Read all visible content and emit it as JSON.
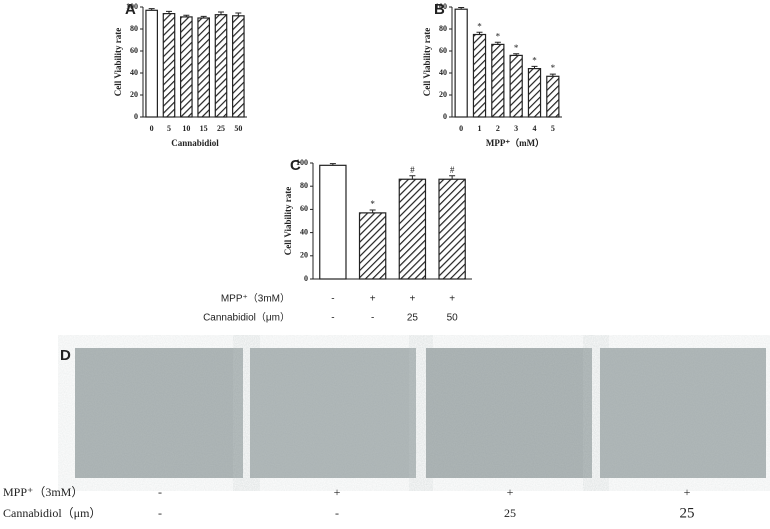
{
  "chart_data": [
    {
      "type": "bar",
      "panel": "A",
      "ylabel": "Cell Viability rate",
      "xlabel": "Cannabidiol",
      "categories": [
        "0",
        "5",
        "10",
        "15",
        "25",
        "50"
      ],
      "values": [
        97,
        94,
        91,
        90,
        93,
        92
      ],
      "errors": [
        1.5,
        2,
        1.5,
        1.5,
        2.5,
        2.5
      ],
      "hatched": [
        false,
        true,
        true,
        true,
        true,
        true
      ],
      "ylim": [
        0,
        100
      ],
      "yticks": [
        0,
        20,
        40,
        60,
        80,
        100
      ]
    },
    {
      "type": "bar",
      "panel": "B",
      "ylabel": "Cell Viability rate",
      "xlabel": "MPP⁺（mM）",
      "categories": [
        "0",
        "1",
        "2",
        "3",
        "4",
        "5"
      ],
      "values": [
        98,
        75,
        66,
        56,
        44,
        37
      ],
      "errors": [
        1.5,
        2,
        2,
        1.5,
        2,
        2
      ],
      "value_annotations": [
        null,
        "*",
        "*",
        "*",
        "*",
        "*"
      ],
      "hatched": [
        false,
        true,
        true,
        true,
        true,
        true
      ],
      "ylim": [
        0,
        100
      ],
      "yticks": [
        0,
        20,
        40,
        60,
        80,
        100
      ]
    },
    {
      "type": "bar",
      "panel": "C",
      "ylabel": "Cell Viability rate",
      "condition_rows": [
        {
          "name": "MPP⁺（3mM）",
          "labels": [
            "-",
            "+",
            "+",
            "+"
          ]
        },
        {
          "name": "Cannabidiol（μm）",
          "labels": [
            "-",
            "-",
            "25",
            "50"
          ]
        }
      ],
      "values": [
        98,
        57,
        86,
        86
      ],
      "errors": [
        1.5,
        2.5,
        3,
        3
      ],
      "value_annotations": [
        null,
        "*",
        "#",
        "#"
      ],
      "hatched": [
        false,
        true,
        true,
        true
      ],
      "ylim": [
        0,
        100
      ],
      "yticks": [
        0,
        20,
        40,
        60,
        80,
        100
      ]
    }
  ],
  "panel_d": {
    "panel": "D",
    "rows": [
      {
        "name": "MPP⁺（3mM）",
        "labels": [
          "-",
          "+",
          "+",
          "+"
        ]
      },
      {
        "name": "Cannabidiol（μm）",
        "labels": [
          "-",
          "-",
          "25",
          "25"
        ]
      }
    ]
  }
}
